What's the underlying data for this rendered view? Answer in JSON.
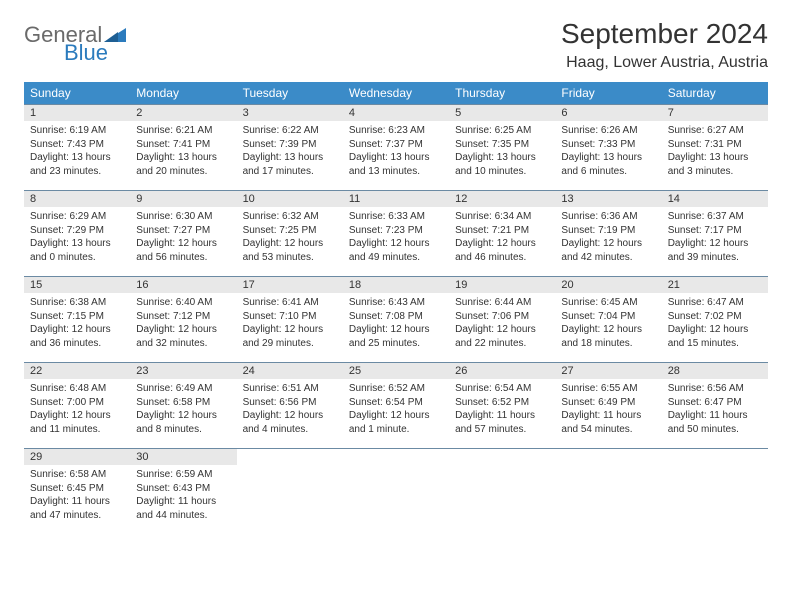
{
  "brand": {
    "word1": "General",
    "word2": "Blue",
    "word1_color": "#6a6a6a",
    "word2_color": "#2b7bbd",
    "triangle_color": "#2b7bbd"
  },
  "title": "September 2024",
  "subtitle": "Haag, Lower Austria, Austria",
  "colors": {
    "header_bg": "#3b8bc8",
    "header_text": "#ffffff",
    "row_border": "#6b8aa3",
    "daynum_bg": "#e8e8e8",
    "text": "#333333",
    "page_bg": "#ffffff"
  },
  "fontsizes": {
    "title": 28,
    "subtitle": 16,
    "weekday": 12,
    "daynum": 11,
    "body": 10
  },
  "weekdays": [
    "Sunday",
    "Monday",
    "Tuesday",
    "Wednesday",
    "Thursday",
    "Friday",
    "Saturday"
  ],
  "weeks": [
    [
      {
        "n": "1",
        "sunrise": "6:19 AM",
        "sunset": "7:43 PM",
        "daylight": "13 hours and 23 minutes."
      },
      {
        "n": "2",
        "sunrise": "6:21 AM",
        "sunset": "7:41 PM",
        "daylight": "13 hours and 20 minutes."
      },
      {
        "n": "3",
        "sunrise": "6:22 AM",
        "sunset": "7:39 PM",
        "daylight": "13 hours and 17 minutes."
      },
      {
        "n": "4",
        "sunrise": "6:23 AM",
        "sunset": "7:37 PM",
        "daylight": "13 hours and 13 minutes."
      },
      {
        "n": "5",
        "sunrise": "6:25 AM",
        "sunset": "7:35 PM",
        "daylight": "13 hours and 10 minutes."
      },
      {
        "n": "6",
        "sunrise": "6:26 AM",
        "sunset": "7:33 PM",
        "daylight": "13 hours and 6 minutes."
      },
      {
        "n": "7",
        "sunrise": "6:27 AM",
        "sunset": "7:31 PM",
        "daylight": "13 hours and 3 minutes."
      }
    ],
    [
      {
        "n": "8",
        "sunrise": "6:29 AM",
        "sunset": "7:29 PM",
        "daylight": "13 hours and 0 minutes."
      },
      {
        "n": "9",
        "sunrise": "6:30 AM",
        "sunset": "7:27 PM",
        "daylight": "12 hours and 56 minutes."
      },
      {
        "n": "10",
        "sunrise": "6:32 AM",
        "sunset": "7:25 PM",
        "daylight": "12 hours and 53 minutes."
      },
      {
        "n": "11",
        "sunrise": "6:33 AM",
        "sunset": "7:23 PM",
        "daylight": "12 hours and 49 minutes."
      },
      {
        "n": "12",
        "sunrise": "6:34 AM",
        "sunset": "7:21 PM",
        "daylight": "12 hours and 46 minutes."
      },
      {
        "n": "13",
        "sunrise": "6:36 AM",
        "sunset": "7:19 PM",
        "daylight": "12 hours and 42 minutes."
      },
      {
        "n": "14",
        "sunrise": "6:37 AM",
        "sunset": "7:17 PM",
        "daylight": "12 hours and 39 minutes."
      }
    ],
    [
      {
        "n": "15",
        "sunrise": "6:38 AM",
        "sunset": "7:15 PM",
        "daylight": "12 hours and 36 minutes."
      },
      {
        "n": "16",
        "sunrise": "6:40 AM",
        "sunset": "7:12 PM",
        "daylight": "12 hours and 32 minutes."
      },
      {
        "n": "17",
        "sunrise": "6:41 AM",
        "sunset": "7:10 PM",
        "daylight": "12 hours and 29 minutes."
      },
      {
        "n": "18",
        "sunrise": "6:43 AM",
        "sunset": "7:08 PM",
        "daylight": "12 hours and 25 minutes."
      },
      {
        "n": "19",
        "sunrise": "6:44 AM",
        "sunset": "7:06 PM",
        "daylight": "12 hours and 22 minutes."
      },
      {
        "n": "20",
        "sunrise": "6:45 AM",
        "sunset": "7:04 PM",
        "daylight": "12 hours and 18 minutes."
      },
      {
        "n": "21",
        "sunrise": "6:47 AM",
        "sunset": "7:02 PM",
        "daylight": "12 hours and 15 minutes."
      }
    ],
    [
      {
        "n": "22",
        "sunrise": "6:48 AM",
        "sunset": "7:00 PM",
        "daylight": "12 hours and 11 minutes."
      },
      {
        "n": "23",
        "sunrise": "6:49 AM",
        "sunset": "6:58 PM",
        "daylight": "12 hours and 8 minutes."
      },
      {
        "n": "24",
        "sunrise": "6:51 AM",
        "sunset": "6:56 PM",
        "daylight": "12 hours and 4 minutes."
      },
      {
        "n": "25",
        "sunrise": "6:52 AM",
        "sunset": "6:54 PM",
        "daylight": "12 hours and 1 minute."
      },
      {
        "n": "26",
        "sunrise": "6:54 AM",
        "sunset": "6:52 PM",
        "daylight": "11 hours and 57 minutes."
      },
      {
        "n": "27",
        "sunrise": "6:55 AM",
        "sunset": "6:49 PM",
        "daylight": "11 hours and 54 minutes."
      },
      {
        "n": "28",
        "sunrise": "6:56 AM",
        "sunset": "6:47 PM",
        "daylight": "11 hours and 50 minutes."
      }
    ],
    [
      {
        "n": "29",
        "sunrise": "6:58 AM",
        "sunset": "6:45 PM",
        "daylight": "11 hours and 47 minutes."
      },
      {
        "n": "30",
        "sunrise": "6:59 AM",
        "sunset": "6:43 PM",
        "daylight": "11 hours and 44 minutes."
      },
      null,
      null,
      null,
      null,
      null
    ]
  ],
  "labels": {
    "sunrise": "Sunrise:",
    "sunset": "Sunset:",
    "daylight": "Daylight:"
  }
}
